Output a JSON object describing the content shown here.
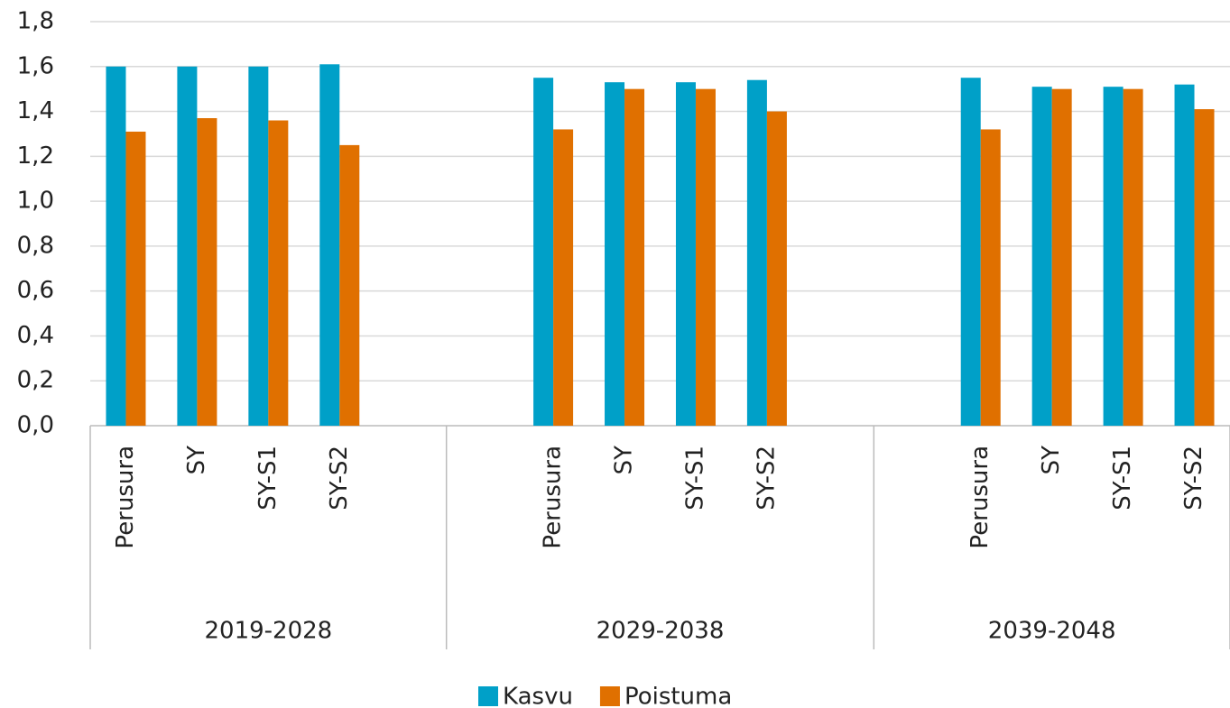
{
  "chart_data": {
    "type": "bar",
    "groups": [
      {
        "name": "2019-2028",
        "categories": [
          "Perusura",
          "SY",
          "SY-S1",
          "SY-S2",
          null
        ]
      },
      {
        "name": "2029-2038",
        "categories": [
          null,
          "Perusura",
          "SY",
          "SY-S1",
          "SY-S2",
          null
        ]
      },
      {
        "name": "2039-2048",
        "categories": [
          null,
          "Perusura",
          "SY",
          "SY-S1",
          "SY-S2"
        ]
      }
    ],
    "series": [
      {
        "name": "Kasvu",
        "color": "#00a0c8",
        "values": [
          1.6,
          1.6,
          1.6,
          1.61,
          null,
          null,
          1.55,
          1.53,
          1.53,
          1.54,
          null,
          null,
          1.55,
          1.51,
          1.51,
          1.52
        ]
      },
      {
        "name": "Poistuma",
        "color": "#e07000",
        "values": [
          1.31,
          1.37,
          1.36,
          1.25,
          null,
          null,
          1.32,
          1.5,
          1.5,
          1.4,
          null,
          null,
          1.32,
          1.5,
          1.5,
          1.41
        ]
      }
    ],
    "ylim": [
      0,
      1.8
    ],
    "yticks": [
      {
        "value": 0,
        "label": "0,0"
      },
      {
        "value": 0.2,
        "label": "0,2"
      },
      {
        "value": 0.4,
        "label": "0,4"
      },
      {
        "value": 0.6,
        "label": "0,6"
      },
      {
        "value": 0.8,
        "label": "0,8"
      },
      {
        "value": 1.0,
        "label": "1,0"
      },
      {
        "value": 1.2,
        "label": "1,2"
      },
      {
        "value": 1.4,
        "label": "1,4"
      },
      {
        "value": 1.6,
        "label": "1,6"
      },
      {
        "value": 1.8,
        "label": "1,8"
      }
    ],
    "grid": true,
    "legend": "bottom"
  }
}
